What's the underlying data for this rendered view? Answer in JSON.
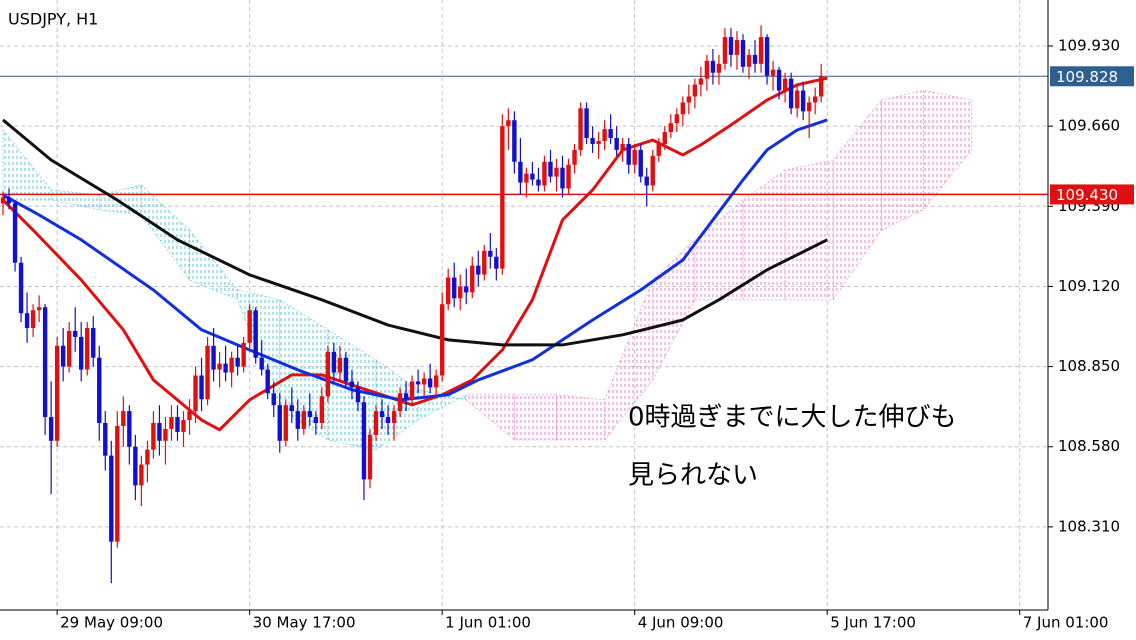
{
  "chart_data": {
    "type": "candlestick",
    "title": "USDJPY, H1",
    "annotation": [
      "0時過ぎまでに大した伸びも",
      "見られない"
    ],
    "ylim": [
      108.03,
      110.085
    ],
    "yticks": [
      {
        "value": 109.93,
        "label": "109.930"
      },
      {
        "value": 109.66,
        "label": "109.660"
      },
      {
        "value": 109.39,
        "label": "109.390"
      },
      {
        "value": 109.12,
        "label": "109.120"
      },
      {
        "value": 108.85,
        "label": "108.850"
      },
      {
        "value": 108.58,
        "label": "108.580"
      },
      {
        "value": 108.31,
        "label": "108.310"
      }
    ],
    "xlim": [
      -0.5,
      173.7
    ],
    "xticks": [
      {
        "value": 9,
        "label": "29 May 09:00"
      },
      {
        "value": 41,
        "label": "30 May 17:00"
      },
      {
        "value": 73,
        "label": "1 Jun 01:00"
      },
      {
        "value": 105,
        "label": "4 Jun 09:00"
      },
      {
        "value": 137,
        "label": "5 Jun 17:00"
      },
      {
        "value": 169,
        "label": "7 Jun 01:00"
      }
    ],
    "grid": true,
    "up_color": "#e01010",
    "down_color": "#1010d0",
    "hlines": [
      {
        "value": 109.828,
        "color": "#2f5f8f"
      },
      {
        "value": {
          "value": 109.43,
          "label": "109.430"
        },
        "color": "#e01010"
      }
    ],
    "ohlc": [
      [
        109.4,
        109.44,
        109.36,
        109.42
      ],
      [
        109.42,
        109.45,
        109.38,
        109.4
      ],
      [
        109.4,
        109.41,
        109.17,
        109.2
      ],
      [
        109.2,
        109.22,
        109.0,
        109.03
      ],
      [
        109.03,
        109.1,
        108.93,
        108.98
      ],
      [
        108.98,
        109.06,
        108.95,
        109.04
      ],
      [
        109.04,
        109.09,
        109.0,
        109.05
      ],
      [
        109.05,
        109.06,
        108.62,
        108.68
      ],
      [
        108.68,
        108.8,
        108.42,
        108.6
      ],
      [
        108.6,
        108.95,
        108.58,
        108.92
      ],
      [
        108.92,
        108.98,
        108.8,
        108.85
      ],
      [
        108.85,
        109.0,
        108.83,
        108.97
      ],
      [
        108.97,
        109.05,
        108.9,
        108.95
      ],
      [
        108.95,
        109.0,
        108.8,
        108.84
      ],
      [
        108.84,
        109.0,
        108.82,
        108.98
      ],
      [
        108.98,
        109.02,
        108.85,
        108.88
      ],
      [
        108.88,
        108.92,
        108.6,
        108.66
      ],
      [
        108.66,
        108.7,
        108.5,
        108.55
      ],
      [
        108.55,
        108.6,
        108.12,
        108.26
      ],
      [
        108.26,
        108.7,
        108.24,
        108.65
      ],
      [
        108.65,
        108.75,
        108.58,
        108.7
      ],
      [
        108.7,
        108.72,
        108.52,
        108.58
      ],
      [
        108.58,
        108.62,
        108.4,
        108.45
      ],
      [
        108.45,
        108.55,
        108.38,
        108.52
      ],
      [
        108.52,
        108.6,
        108.46,
        108.57
      ],
      [
        108.57,
        108.7,
        108.54,
        108.66
      ],
      [
        108.66,
        108.72,
        108.55,
        108.6
      ],
      [
        108.6,
        108.68,
        108.52,
        108.64
      ],
      [
        108.64,
        108.72,
        108.6,
        108.68
      ],
      [
        108.68,
        108.72,
        108.6,
        108.63
      ],
      [
        108.63,
        108.7,
        108.58,
        108.67
      ],
      [
        108.67,
        108.74,
        108.62,
        108.7
      ],
      [
        108.7,
        108.85,
        108.66,
        108.82
      ],
      [
        108.82,
        108.88,
        108.7,
        108.74
      ],
      [
        108.74,
        108.95,
        108.72,
        108.92
      ],
      [
        108.92,
        108.98,
        108.8,
        108.84
      ],
      [
        108.84,
        108.9,
        108.78,
        108.86
      ],
      [
        108.86,
        108.92,
        108.8,
        108.83
      ],
      [
        108.83,
        108.9,
        108.78,
        108.88
      ],
      [
        108.88,
        108.92,
        108.82,
        108.85
      ],
      [
        108.85,
        108.95,
        108.83,
        108.93
      ],
      [
        108.93,
        109.06,
        108.9,
        109.04
      ],
      [
        109.04,
        109.05,
        108.86,
        108.88
      ],
      [
        108.88,
        108.94,
        108.82,
        108.84
      ],
      [
        108.84,
        108.86,
        108.74,
        108.76
      ],
      [
        108.76,
        108.8,
        108.68,
        108.72
      ],
      [
        108.72,
        108.76,
        108.56,
        108.6
      ],
      [
        108.6,
        108.74,
        108.58,
        108.72
      ],
      [
        108.72,
        108.78,
        108.66,
        108.7
      ],
      [
        108.7,
        108.74,
        108.6,
        108.64
      ],
      [
        108.64,
        108.72,
        108.62,
        108.7
      ],
      [
        108.7,
        108.76,
        108.65,
        108.68
      ],
      [
        108.68,
        108.7,
        108.62,
        108.66
      ],
      [
        108.66,
        108.78,
        108.64,
        108.75
      ],
      [
        108.75,
        108.92,
        108.73,
        108.9
      ],
      [
        108.9,
        108.93,
        108.8,
        108.83
      ],
      [
        108.83,
        108.92,
        108.8,
        108.88
      ],
      [
        108.88,
        108.9,
        108.78,
        108.8
      ],
      [
        108.8,
        108.84,
        108.74,
        108.78
      ],
      [
        108.78,
        108.8,
        108.7,
        108.73
      ],
      [
        108.73,
        108.75,
        108.4,
        108.47
      ],
      [
        108.47,
        108.64,
        108.44,
        108.62
      ],
      [
        108.62,
        108.72,
        108.6,
        108.7
      ],
      [
        108.7,
        108.74,
        108.64,
        108.68
      ],
      [
        108.68,
        108.72,
        108.62,
        108.66
      ],
      [
        108.66,
        108.72,
        108.6,
        108.7
      ],
      [
        108.7,
        108.78,
        108.68,
        108.76
      ],
      [
        108.76,
        108.8,
        108.7,
        108.74
      ],
      [
        108.74,
        108.82,
        108.72,
        108.8
      ],
      [
        108.8,
        108.84,
        108.76,
        108.79
      ],
      [
        108.79,
        108.83,
        108.75,
        108.81
      ],
      [
        108.81,
        108.86,
        108.76,
        108.78
      ],
      [
        108.78,
        108.84,
        108.75,
        108.82
      ],
      [
        108.82,
        109.1,
        108.8,
        109.06
      ],
      [
        109.06,
        109.18,
        109.04,
        109.15
      ],
      [
        109.15,
        109.2,
        109.05,
        109.08
      ],
      [
        109.08,
        109.16,
        109.04,
        109.12
      ],
      [
        109.12,
        109.18,
        109.06,
        109.1
      ],
      [
        109.1,
        109.22,
        109.08,
        109.19
      ],
      [
        109.19,
        109.24,
        109.12,
        109.16
      ],
      [
        109.16,
        109.26,
        109.14,
        109.24
      ],
      [
        109.24,
        109.3,
        109.18,
        109.22
      ],
      [
        109.22,
        109.25,
        109.14,
        109.18
      ],
      [
        109.18,
        109.7,
        109.16,
        109.66
      ],
      [
        109.66,
        109.72,
        109.58,
        109.68
      ],
      [
        109.68,
        109.71,
        109.5,
        109.54
      ],
      [
        109.54,
        109.62,
        109.43,
        109.47
      ],
      [
        109.47,
        109.52,
        109.42,
        109.5
      ],
      [
        109.5,
        109.54,
        109.46,
        109.48
      ],
      [
        109.48,
        109.52,
        109.44,
        109.46
      ],
      [
        109.46,
        109.56,
        109.44,
        109.54
      ],
      [
        109.54,
        109.58,
        109.47,
        109.49
      ],
      [
        109.49,
        109.55,
        109.44,
        109.52
      ],
      [
        109.52,
        109.56,
        109.42,
        109.45
      ],
      [
        109.45,
        109.55,
        109.43,
        109.53
      ],
      [
        109.53,
        109.6,
        109.5,
        109.58
      ],
      [
        109.58,
        109.74,
        109.56,
        109.72
      ],
      [
        109.72,
        109.74,
        109.6,
        109.62
      ],
      [
        109.62,
        109.66,
        109.57,
        109.6
      ],
      [
        109.6,
        109.64,
        109.55,
        109.61
      ],
      [
        109.61,
        109.68,
        109.58,
        109.65
      ],
      [
        109.65,
        109.7,
        109.6,
        109.62
      ],
      [
        109.62,
        109.66,
        109.56,
        109.58
      ],
      [
        109.58,
        109.62,
        109.54,
        109.6
      ],
      [
        109.6,
        109.62,
        109.5,
        109.53
      ],
      [
        109.53,
        109.6,
        109.5,
        109.58
      ],
      [
        109.58,
        109.6,
        109.47,
        109.49
      ],
      [
        109.49,
        109.52,
        109.39,
        109.46
      ],
      [
        109.46,
        109.58,
        109.44,
        109.56
      ],
      [
        109.56,
        109.62,
        109.54,
        109.6
      ],
      [
        109.6,
        109.66,
        109.58,
        109.64
      ],
      [
        109.64,
        109.7,
        109.62,
        109.67
      ],
      [
        109.67,
        109.72,
        109.64,
        109.7
      ],
      [
        109.7,
        109.76,
        109.66,
        109.74
      ],
      [
        109.74,
        109.8,
        109.7,
        109.76
      ],
      [
        109.76,
        109.82,
        109.72,
        109.8
      ],
      [
        109.8,
        109.86,
        109.76,
        109.82
      ],
      [
        109.82,
        109.9,
        109.78,
        109.88
      ],
      [
        109.88,
        109.92,
        109.8,
        109.84
      ],
      [
        109.84,
        109.9,
        109.8,
        109.87
      ],
      [
        109.87,
        109.99,
        109.85,
        109.96
      ],
      [
        109.96,
        109.99,
        109.86,
        109.9
      ],
      [
        109.9,
        109.98,
        109.85,
        109.95
      ],
      [
        109.95,
        109.97,
        109.84,
        109.86
      ],
      [
        109.86,
        109.92,
        109.82,
        109.9
      ],
      [
        109.9,
        109.95,
        109.84,
        109.87
      ],
      [
        109.87,
        110.0,
        109.84,
        109.96
      ],
      [
        109.96,
        109.97,
        109.8,
        109.83
      ],
      [
        109.83,
        109.88,
        109.78,
        109.85
      ],
      [
        109.85,
        109.86,
        109.75,
        109.78
      ],
      [
        109.78,
        109.84,
        109.74,
        109.82
      ],
      [
        109.82,
        109.84,
        109.7,
        109.72
      ],
      [
        109.72,
        109.8,
        109.69,
        109.78
      ],
      [
        109.78,
        109.81,
        109.68,
        109.71
      ],
      [
        109.71,
        109.76,
        109.62,
        109.74
      ],
      [
        109.74,
        109.79,
        109.7,
        109.76
      ],
      [
        109.76,
        109.87,
        109.74,
        109.828
      ]
    ],
    "lines": [
      {
        "color": "#e01010",
        "x": [
          0,
          5,
          13,
          20,
          25,
          33,
          36,
          41,
          48,
          53,
          58,
          63,
          68,
          73,
          78,
          83,
          88,
          93,
          98,
          103,
          108,
          113,
          116,
          121,
          127,
          132,
          137
        ],
        "values": [
          109.411,
          109.31,
          109.142,
          108.974,
          108.805,
          108.67,
          108.637,
          108.738,
          108.822,
          108.822,
          108.788,
          108.755,
          108.721,
          108.755,
          108.805,
          108.906,
          109.075,
          109.344,
          109.445,
          109.58,
          109.613,
          109.563,
          109.597,
          109.664,
          109.748,
          109.799,
          109.822
        ]
      },
      {
        "color": "#1030e0",
        "x": [
          0,
          6,
          13,
          25,
          33,
          41,
          49,
          58,
          66,
          74,
          79,
          88,
          98,
          106,
          113,
          118,
          123,
          127,
          132,
          137
        ],
        "values": [
          109.428,
          109.361,
          109.277,
          109.108,
          108.974,
          108.906,
          108.839,
          108.772,
          108.738,
          108.755,
          108.805,
          108.873,
          109.007,
          109.108,
          109.209,
          109.344,
          109.479,
          109.58,
          109.647,
          109.681
        ]
      },
      {
        "color": "#111111",
        "x": [
          0,
          8,
          19,
          29,
          41,
          53,
          64,
          74,
          83,
          93,
          103,
          113,
          119,
          127,
          137
        ],
        "values": [
          109.681,
          109.546,
          109.411,
          109.277,
          109.159,
          109.075,
          108.99,
          108.94,
          108.923,
          108.923,
          108.957,
          109.007,
          109.075,
          109.176,
          109.277
        ]
      }
    ],
    "cloud": {
      "up_color": "#50c8dc",
      "down_color": "#ee80cc",
      "x": [
        0,
        8,
        16,
        23,
        31,
        39,
        46,
        54,
        62,
        69,
        77,
        85,
        92,
        100,
        108,
        115,
        123,
        130,
        138,
        146,
        153,
        161
      ],
      "span_a": [
        109.647,
        109.445,
        109.428,
        109.462,
        109.31,
        109.108,
        109.075,
        108.974,
        108.873,
        108.772,
        108.738,
        108.603,
        108.603,
        108.603,
        108.805,
        109.075,
        109.075,
        109.075,
        109.075,
        109.31,
        109.378,
        109.58
      ],
      "span_b": [
        109.411,
        109.411,
        109.378,
        109.361,
        109.142,
        109.075,
        108.704,
        108.603,
        108.569,
        108.67,
        108.755,
        108.755,
        108.755,
        108.738,
        109.142,
        109.277,
        109.411,
        109.512,
        109.546,
        109.748,
        109.781,
        109.748
      ]
    }
  }
}
